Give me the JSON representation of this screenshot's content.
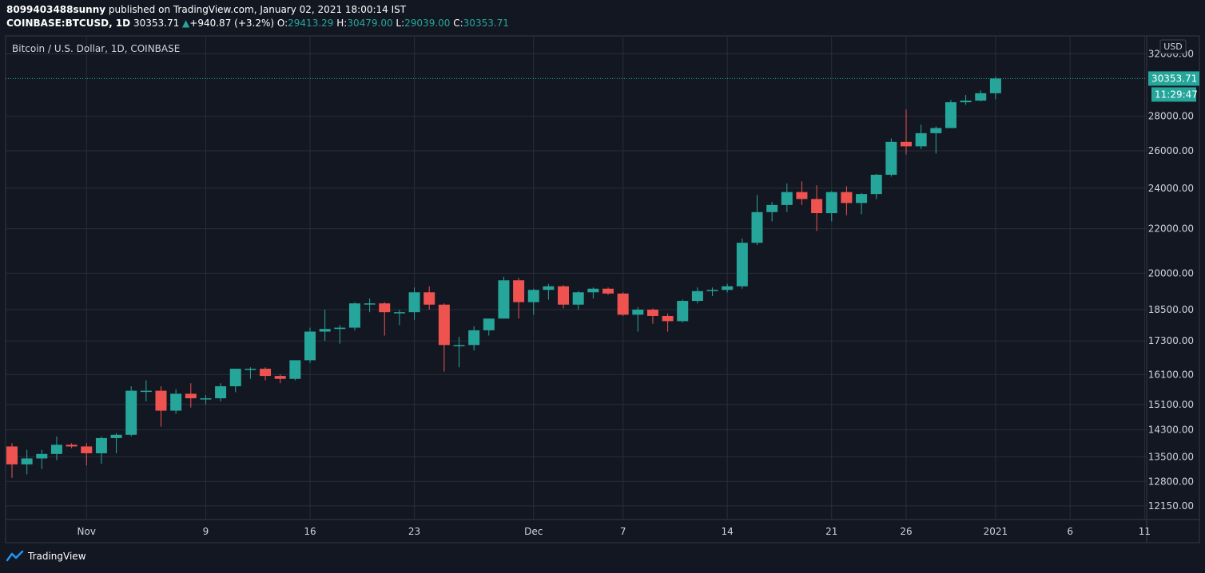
{
  "header": {
    "publisher": "8099403488sunny",
    "published_text": "published on TradingView.com, January 02, 2021 18:00:14 IST",
    "symbol": "COINBASE:BTCUSD, 1D",
    "last": "30353.71",
    "change": "+940.87 (+3.2%)",
    "o_label": "O:",
    "o_value": "29413.29",
    "h_label": "H:",
    "h_value": "30479.00",
    "l_label": "L:",
    "l_value": "29039.00",
    "c_label": "C:",
    "c_value": "30353.71"
  },
  "legend_title": "Bitcoin / U.S. Dollar, 1D, COINBASE",
  "currency_button": "USD",
  "price_tag": "30353.71",
  "countdown_tag": "11:29:47",
  "footer_brand": "TradingView",
  "colors": {
    "up": "#26a69a",
    "down": "#ef5350",
    "background": "#131722",
    "grid": "#2a2e39"
  },
  "chart_data": {
    "type": "candlestick",
    "title": "Bitcoin / U.S. Dollar, 1D, COINBASE",
    "y_scale": "log",
    "ylim": [
      11800,
      33200
    ],
    "y_ticks": [
      12150,
      12800,
      13500,
      14300,
      15100,
      16100,
      17300,
      18500,
      20000,
      22000,
      24000,
      26000,
      28000,
      32000
    ],
    "y_tick_labels": [
      "12150.00",
      "12800.00",
      "13500.00",
      "14300.00",
      "15100.00",
      "16100.00",
      "17300.00",
      "18500.00",
      "20000.00",
      "22000.00",
      "24000.00",
      "26000.00",
      "28000.00",
      "32000.00"
    ],
    "x_ticks": [
      {
        "date": "2020-11-01",
        "label": "Nov"
      },
      {
        "date": "2020-11-09",
        "label": "9"
      },
      {
        "date": "2020-11-16",
        "label": "16"
      },
      {
        "date": "2020-11-23",
        "label": "23"
      },
      {
        "date": "2020-12-01",
        "label": "Dec"
      },
      {
        "date": "2020-12-07",
        "label": "7"
      },
      {
        "date": "2020-12-14",
        "label": "14"
      },
      {
        "date": "2020-12-21",
        "label": "21"
      },
      {
        "date": "2020-12-26",
        "label": "26"
      },
      {
        "date": "2021-01-01",
        "label": "2021"
      },
      {
        "date": "2021-01-06",
        "label": "6"
      },
      {
        "date": "2021-01-11",
        "label": "11"
      }
    ],
    "x_range": [
      "2020-10-27",
      "2021-01-12"
    ],
    "last_price": 30353.71,
    "candles": [
      {
        "date": "2020-10-27",
        "o": 13800,
        "h": 13900,
        "l": 12900,
        "c": 13280
      },
      {
        "date": "2020-10-28",
        "o": 13280,
        "h": 13700,
        "l": 13000,
        "c": 13450
      },
      {
        "date": "2020-10-29",
        "o": 13450,
        "h": 13700,
        "l": 13150,
        "c": 13580
      },
      {
        "date": "2020-10-30",
        "o": 13580,
        "h": 14100,
        "l": 13400,
        "c": 13850
      },
      {
        "date": "2020-10-31",
        "o": 13850,
        "h": 13900,
        "l": 13750,
        "c": 13800
      },
      {
        "date": "2020-11-01",
        "o": 13800,
        "h": 13900,
        "l": 13250,
        "c": 13600
      },
      {
        "date": "2020-11-02",
        "o": 13600,
        "h": 14100,
        "l": 13300,
        "c": 14050
      },
      {
        "date": "2020-11-03",
        "o": 14050,
        "h": 14200,
        "l": 13600,
        "c": 14150
      },
      {
        "date": "2020-11-04",
        "o": 14150,
        "h": 15700,
        "l": 14100,
        "c": 15550
      },
      {
        "date": "2020-11-05",
        "o": 15550,
        "h": 15900,
        "l": 15200,
        "c": 15550
      },
      {
        "date": "2020-11-06",
        "o": 15550,
        "h": 15700,
        "l": 14400,
        "c": 14900
      },
      {
        "date": "2020-11-07",
        "o": 14900,
        "h": 15600,
        "l": 14800,
        "c": 15450
      },
      {
        "date": "2020-11-08",
        "o": 15450,
        "h": 15800,
        "l": 15000,
        "c": 15300
      },
      {
        "date": "2020-11-09",
        "o": 15300,
        "h": 15400,
        "l": 15100,
        "c": 15300
      },
      {
        "date": "2020-11-10",
        "o": 15300,
        "h": 15800,
        "l": 15200,
        "c": 15700
      },
      {
        "date": "2020-11-11",
        "o": 15700,
        "h": 16300,
        "l": 15500,
        "c": 16300
      },
      {
        "date": "2020-11-12",
        "o": 16300,
        "h": 16350,
        "l": 15950,
        "c": 16300
      },
      {
        "date": "2020-11-13",
        "o": 16300,
        "h": 16350,
        "l": 15900,
        "c": 16050
      },
      {
        "date": "2020-11-14",
        "o": 16050,
        "h": 16100,
        "l": 15800,
        "c": 15950
      },
      {
        "date": "2020-11-15",
        "o": 15950,
        "h": 16600,
        "l": 15900,
        "c": 16600
      },
      {
        "date": "2020-11-16",
        "o": 16600,
        "h": 17800,
        "l": 16500,
        "c": 17650
      },
      {
        "date": "2020-11-17",
        "o": 17650,
        "h": 18500,
        "l": 17300,
        "c": 17750
      },
      {
        "date": "2020-11-18",
        "o": 17750,
        "h": 17900,
        "l": 17200,
        "c": 17800
      },
      {
        "date": "2020-11-19",
        "o": 17800,
        "h": 18800,
        "l": 17700,
        "c": 18750
      },
      {
        "date": "2020-11-20",
        "o": 18750,
        "h": 18950,
        "l": 18400,
        "c": 18750
      },
      {
        "date": "2020-11-21",
        "o": 18750,
        "h": 18800,
        "l": 17500,
        "c": 18400
      },
      {
        "date": "2020-11-22",
        "o": 18400,
        "h": 18500,
        "l": 17900,
        "c": 18400
      },
      {
        "date": "2020-11-23",
        "o": 18400,
        "h": 19400,
        "l": 18100,
        "c": 19200
      },
      {
        "date": "2020-11-24",
        "o": 19200,
        "h": 19450,
        "l": 18500,
        "c": 18700
      },
      {
        "date": "2020-11-25",
        "o": 18700,
        "h": 18750,
        "l": 16200,
        "c": 17150
      },
      {
        "date": "2020-11-26",
        "o": 17150,
        "h": 17450,
        "l": 16350,
        "c": 17150
      },
      {
        "date": "2020-11-27",
        "o": 17150,
        "h": 17850,
        "l": 16950,
        "c": 17700
      },
      {
        "date": "2020-11-28",
        "o": 17700,
        "h": 18000,
        "l": 17500,
        "c": 18150
      },
      {
        "date": "2020-11-29",
        "o": 18150,
        "h": 19850,
        "l": 18150,
        "c": 19700
      },
      {
        "date": "2020-11-30",
        "o": 19700,
        "h": 19800,
        "l": 18150,
        "c": 18800
      },
      {
        "date": "2020-12-01",
        "o": 18800,
        "h": 19350,
        "l": 18300,
        "c": 19300
      },
      {
        "date": "2020-12-02",
        "o": 19300,
        "h": 19550,
        "l": 18900,
        "c": 19450
      },
      {
        "date": "2020-12-03",
        "o": 19450,
        "h": 19500,
        "l": 18550,
        "c": 18700
      },
      {
        "date": "2020-12-04",
        "o": 18700,
        "h": 19250,
        "l": 18500,
        "c": 19200
      },
      {
        "date": "2020-12-05",
        "o": 19200,
        "h": 19400,
        "l": 18950,
        "c": 19350
      },
      {
        "date": "2020-12-06",
        "o": 19350,
        "h": 19400,
        "l": 19100,
        "c": 19150
      },
      {
        "date": "2020-12-07",
        "o": 19150,
        "h": 19200,
        "l": 18250,
        "c": 18300
      },
      {
        "date": "2020-12-08",
        "o": 18300,
        "h": 18600,
        "l": 17650,
        "c": 18500
      },
      {
        "date": "2020-12-09",
        "o": 18500,
        "h": 18550,
        "l": 17950,
        "c": 18250
      },
      {
        "date": "2020-12-10",
        "o": 18250,
        "h": 18350,
        "l": 17650,
        "c": 18050
      },
      {
        "date": "2020-12-11",
        "o": 18050,
        "h": 18900,
        "l": 18000,
        "c": 18850
      },
      {
        "date": "2020-12-12",
        "o": 18850,
        "h": 19400,
        "l": 18750,
        "c": 19250
      },
      {
        "date": "2020-12-13",
        "o": 19250,
        "h": 19400,
        "l": 19050,
        "c": 19300
      },
      {
        "date": "2020-12-14",
        "o": 19300,
        "h": 19550,
        "l": 19200,
        "c": 19450
      },
      {
        "date": "2020-12-15",
        "o": 19450,
        "h": 21550,
        "l": 19350,
        "c": 21350
      },
      {
        "date": "2020-12-16",
        "o": 21350,
        "h": 23650,
        "l": 21250,
        "c": 22800
      },
      {
        "date": "2020-12-17",
        "o": 22800,
        "h": 23300,
        "l": 22350,
        "c": 23150
      },
      {
        "date": "2020-12-18",
        "o": 23150,
        "h": 24250,
        "l": 22800,
        "c": 23800
      },
      {
        "date": "2020-12-19",
        "o": 23800,
        "h": 24350,
        "l": 23150,
        "c": 23450
      },
      {
        "date": "2020-12-20",
        "o": 23450,
        "h": 24150,
        "l": 21900,
        "c": 22750
      },
      {
        "date": "2020-12-21",
        "o": 22750,
        "h": 23850,
        "l": 22350,
        "c": 23800
      },
      {
        "date": "2020-12-22",
        "o": 23800,
        "h": 24100,
        "l": 22650,
        "c": 23250
      },
      {
        "date": "2020-12-23",
        "o": 23250,
        "h": 23750,
        "l": 22700,
        "c": 23700
      },
      {
        "date": "2020-12-24",
        "o": 23700,
        "h": 24750,
        "l": 23450,
        "c": 24700
      },
      {
        "date": "2020-12-25",
        "o": 24700,
        "h": 26700,
        "l": 24600,
        "c": 26500
      },
      {
        "date": "2020-12-26",
        "o": 26500,
        "h": 28400,
        "l": 25800,
        "c": 26250
      },
      {
        "date": "2020-12-27",
        "o": 26250,
        "h": 27500,
        "l": 26100,
        "c": 27000
      },
      {
        "date": "2020-12-28",
        "o": 27000,
        "h": 27400,
        "l": 25850,
        "c": 27300
      },
      {
        "date": "2020-12-29",
        "o": 27300,
        "h": 29000,
        "l": 27300,
        "c": 28850
      },
      {
        "date": "2020-12-30",
        "o": 28850,
        "h": 29300,
        "l": 28700,
        "c": 28950
      },
      {
        "date": "2020-12-31",
        "o": 28950,
        "h": 29600,
        "l": 28900,
        "c": 29413.29
      },
      {
        "date": "2021-01-01",
        "o": 29413.29,
        "h": 30479,
        "l": 29039,
        "c": 30353.71
      }
    ]
  }
}
